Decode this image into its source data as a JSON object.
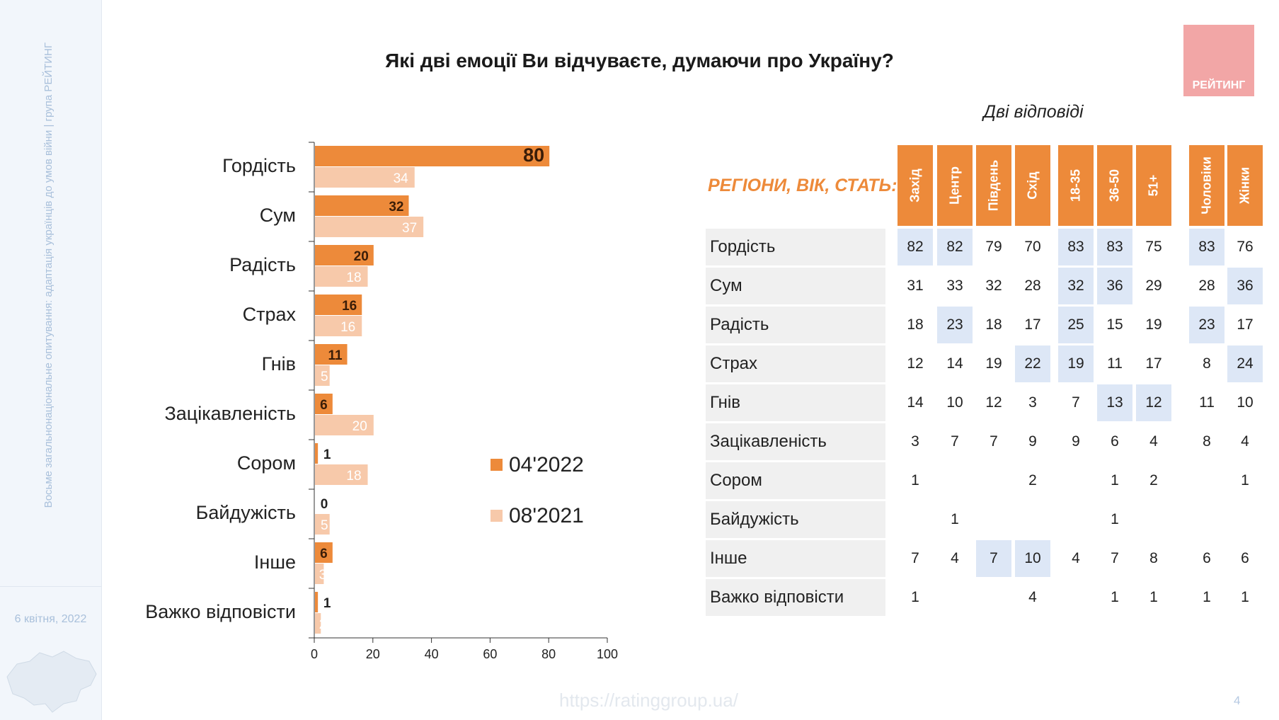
{
  "sidebar": {
    "vertical_text": "Восьме загальнонаціональне опитування: адаптація українців до умов війни | група РЕЙТИНГ",
    "date": "6 квітня, 2022"
  },
  "title": "Які дві емоції Ви відчуваєте, думаючи про Україну?",
  "subtitle": "Дві відповіді",
  "logo_text": "РЕЙТИНГ",
  "colors": {
    "series_2022": "#ed8a3a",
    "series_2021": "#f7c9aa",
    "header_bg": "#ed8a3a",
    "highlight": "#dde7f6",
    "row_bg": "#f0f0f0"
  },
  "chart_data": {
    "type": "bar",
    "orientation": "horizontal",
    "categories": [
      "Гордість",
      "Сум",
      "Радість",
      "Страх",
      "Гнів",
      "Зацікавленість",
      "Сором",
      "Байдужість",
      "Інше",
      "Важко відповісти"
    ],
    "series": [
      {
        "name": "04'2022",
        "values": [
          80,
          32,
          20,
          16,
          11,
          6,
          1,
          0,
          6,
          1
        ]
      },
      {
        "name": "08'2021",
        "values": [
          34,
          37,
          18,
          16,
          5,
          20,
          18,
          5,
          3,
          2
        ]
      }
    ],
    "xlim": [
      0,
      100
    ],
    "xticks": [
      0,
      20,
      40,
      60,
      80,
      100
    ],
    "legend_position": "right",
    "grid": false
  },
  "table": {
    "header_label": "РЕГІОНИ, ВІК, СТАТЬ:",
    "groups": [
      [
        "Захід",
        "Центр",
        "Південь",
        "Схід"
      ],
      [
        "18-35",
        "36-50",
        "51+"
      ],
      [
        "Чоловіки",
        "Жінки"
      ]
    ],
    "rows": [
      {
        "label": "Гордість",
        "values": [
          "82",
          "82",
          "79",
          "70",
          "83",
          "83",
          "75",
          "83",
          "76"
        ],
        "highlight": [
          0,
          1,
          4,
          5,
          7
        ]
      },
      {
        "label": "Сум",
        "values": [
          "31",
          "33",
          "32",
          "28",
          "32",
          "36",
          "29",
          "28",
          "36"
        ],
        "highlight": [
          4,
          5,
          8
        ]
      },
      {
        "label": "Радість",
        "values": [
          "18",
          "23",
          "18",
          "17",
          "25",
          "15",
          "19",
          "23",
          "17"
        ],
        "highlight": [
          1,
          4,
          7
        ]
      },
      {
        "label": "Страх",
        "values": [
          "12",
          "14",
          "19",
          "22",
          "19",
          "11",
          "17",
          "8",
          "24"
        ],
        "highlight": [
          3,
          4,
          8
        ]
      },
      {
        "label": "Гнів",
        "values": [
          "14",
          "10",
          "12",
          "3",
          "7",
          "13",
          "12",
          "11",
          "10"
        ],
        "highlight": [
          5,
          6
        ]
      },
      {
        "label": "Зацікавленість",
        "values": [
          "3",
          "7",
          "7",
          "9",
          "9",
          "6",
          "4",
          "8",
          "4"
        ],
        "highlight": []
      },
      {
        "label": "Сором",
        "values": [
          "1",
          "",
          "",
          "2",
          "",
          "1",
          "2",
          "",
          "1"
        ],
        "highlight": []
      },
      {
        "label": "Байдужість",
        "values": [
          "",
          "1",
          "",
          "",
          "",
          "1",
          "",
          "",
          ""
        ],
        "highlight": []
      },
      {
        "label": "Інше",
        "values": [
          "7",
          "4",
          "7",
          "10",
          "4",
          "7",
          "8",
          "6",
          "6"
        ],
        "highlight": [
          2,
          3
        ]
      },
      {
        "label": "Важко відповісти",
        "values": [
          "1",
          "",
          "",
          "4",
          "",
          "1",
          "1",
          "1",
          "1"
        ],
        "highlight": []
      }
    ]
  },
  "footer": {
    "url": "https://ratinggroup.ua/",
    "page": "4"
  }
}
